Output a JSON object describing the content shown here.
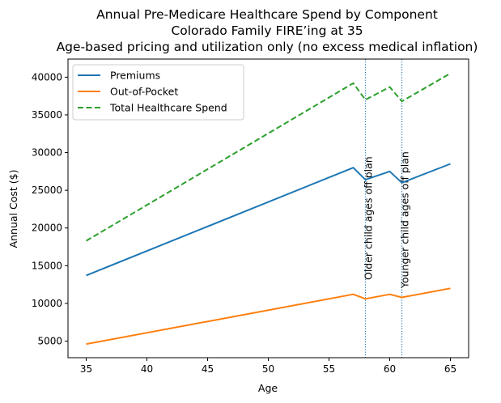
{
  "chart_data": {
    "type": "line",
    "title": "Annual Pre-Medicare Healthcare Spend by Component",
    "title_lines": [
      "Annual Pre-Medicare Healthcare Spend by Component",
      "Colorado Family FIRE’ing at 35",
      "Age-based pricing and utilization only (no excess medical inflation)"
    ],
    "xlabel": "Age",
    "ylabel": "Annual Cost ($)",
    "xlim": [
      33.5,
      66.5
    ],
    "ylim": [
      2800,
      42400
    ],
    "xticks": [
      35,
      40,
      45,
      50,
      55,
      60,
      65
    ],
    "yticks": [
      5000,
      10000,
      15000,
      20000,
      25000,
      30000,
      35000,
      40000
    ],
    "grid": false,
    "legend_position": "top-left",
    "x": [
      35,
      57,
      58,
      60,
      61,
      65
    ],
    "series": [
      {
        "name": "Premiums",
        "color": "#1f77b4",
        "style": "solid",
        "values": [
          13700,
          28000,
          26400,
          27500,
          26000,
          28500
        ]
      },
      {
        "name": "Out-of-Pocket",
        "color": "#ff7f0e",
        "style": "solid",
        "values": [
          4600,
          11200,
          10600,
          11200,
          10800,
          12000
        ]
      },
      {
        "name": "Total Healthcare Spend",
        "color": "#2ca02c",
        "style": "dashed",
        "values": [
          18300,
          39200,
          37000,
          38700,
          36800,
          40500
        ]
      }
    ],
    "annotations": [
      {
        "x": 58,
        "label": "Older child ages off plan",
        "color": "#1f77b4",
        "style": "dotted"
      },
      {
        "x": 61,
        "label": "Younger child ages off plan",
        "color": "#1f77b4",
        "style": "dotted"
      }
    ]
  }
}
